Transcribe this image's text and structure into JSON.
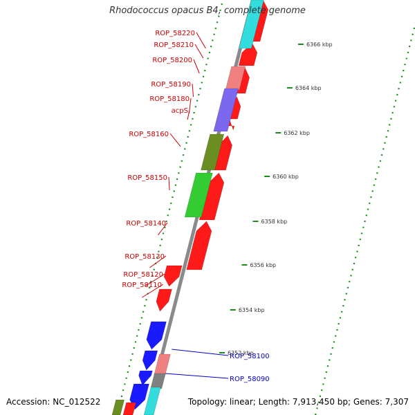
{
  "title": "Rhodococcus opacus B4, complete genome",
  "footer": {
    "accession": "Accession: NC_012522",
    "topology": "Topology: linear; Length: 7,913,450 bp; Genes: 7,307"
  },
  "colors": {
    "forward_gene": "#ff1a1a",
    "reverse_gene_red": "#ff1a1a",
    "reverse_gene_blue": "#1a1aff",
    "gc_track": "#1a8c1a",
    "backbone": "#8a8a8a",
    "label_red": "#cc0000",
    "label_blue": "#0000cc"
  },
  "scale_ticks": [
    "6352 kbp",
    "6354 kbp",
    "6356 kbp",
    "6358 kbp",
    "6360 kbp",
    "6362 kbp",
    "6364 kbp",
    "6366 kbp"
  ],
  "gene_labels": [
    {
      "name": "ROP_58220",
      "color": "red"
    },
    {
      "name": "ROP_58210",
      "color": "red"
    },
    {
      "name": "ROP_58200",
      "color": "red"
    },
    {
      "name": "ROP_58190",
      "color": "red"
    },
    {
      "name": "ROP_58180",
      "color": "red"
    },
    {
      "name": "acpS",
      "color": "red"
    },
    {
      "name": "ROP_58160",
      "color": "red"
    },
    {
      "name": "ROP_58150",
      "color": "red"
    },
    {
      "name": "ROP_58140",
      "color": "red"
    },
    {
      "name": "ROP_58130",
      "color": "red"
    },
    {
      "name": "ROP_58120",
      "color": "red"
    },
    {
      "name": "ROP_58110",
      "color": "red"
    },
    {
      "name": "ROP_58100",
      "color": "blue"
    },
    {
      "name": "ROP_58090",
      "color": "blue"
    }
  ]
}
